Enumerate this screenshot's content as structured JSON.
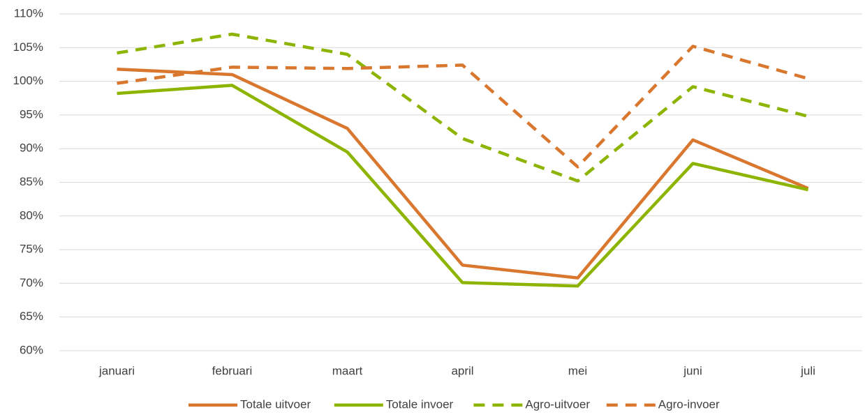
{
  "chart_data": {
    "type": "line",
    "categories": [
      "januari",
      "februari",
      "maart",
      "april",
      "mei",
      "juni",
      "juli"
    ],
    "series": [
      {
        "name": "Totale uitvoer",
        "color": "#d9772f",
        "style": "solid",
        "values": [
          101.8,
          101,
          93,
          72.7,
          70.8,
          91.3,
          84.1
        ]
      },
      {
        "name": "Totale invoer",
        "color": "#8cb400",
        "style": "solid",
        "values": [
          98.2,
          99.4,
          89.5,
          70.1,
          69.6,
          87.8,
          83.9
        ]
      },
      {
        "name": "Agro-uitvoer",
        "color": "#8cb400",
        "style": "dashed",
        "values": [
          104.2,
          107,
          104,
          91.5,
          85.2,
          99.2,
          94.8
        ]
      },
      {
        "name": "Agro-invoer",
        "color": "#d9772f",
        "style": "dashed",
        "values": [
          99.7,
          102.1,
          101.9,
          102.4,
          87.3,
          105.2,
          100.4
        ]
      }
    ],
    "ylim": [
      60,
      110
    ],
    "yticks": [
      {
        "value": 60,
        "label": "60%"
      },
      {
        "value": 65,
        "label": "65%"
      },
      {
        "value": 70,
        "label": "70%"
      },
      {
        "value": 75,
        "label": "75%"
      },
      {
        "value": 80,
        "label": "80%"
      },
      {
        "value": 85,
        "label": "85%"
      },
      {
        "value": 90,
        "label": "90%"
      },
      {
        "value": 95,
        "label": "95%"
      },
      {
        "value": 100,
        "label": "100%"
      },
      {
        "value": 105,
        "label": "105%"
      },
      {
        "value": 110,
        "label": "110%"
      }
    ],
    "grid": true,
    "legend": "bottom"
  }
}
